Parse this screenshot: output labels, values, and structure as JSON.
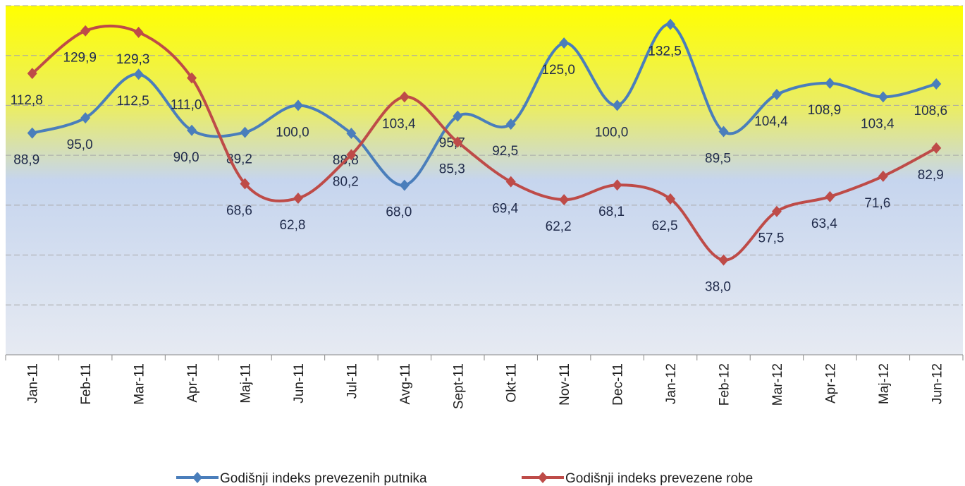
{
  "chart_data": {
    "type": "line",
    "categories": [
      "Jan-11",
      "Feb-11",
      "Mar-11",
      "Apr-11",
      "Maj-11",
      "Jun-11",
      "Jul-11",
      "Avg-11",
      "Sept-11",
      "Okt-11",
      "Nov-11",
      "Dec-11",
      "Jan-12",
      "Feb-12",
      "Mar-12",
      "Apr-12",
      "Maj-12",
      "Jun-12"
    ],
    "series": [
      {
        "name": "Godišnji indeks prevezenih putnika",
        "color": "#4a7ebb",
        "values": [
          88.9,
          95.0,
          112.5,
          90.0,
          89.2,
          100.0,
          88.8,
          68.0,
          95.7,
          92.5,
          125.0,
          100.0,
          132.5,
          89.5,
          104.4,
          108.9,
          103.4,
          108.6
        ],
        "value_labels": [
          "88,9",
          "95,0",
          "112,5",
          "90,0",
          "89,2",
          "100,0",
          "88,8",
          "68,0",
          "95,7",
          "92,5",
          "125,0",
          "100,0",
          "132,5",
          "89,5",
          "104,4",
          "108,9",
          "103,4",
          "108,6"
        ]
      },
      {
        "name": "Godišnji indeks prevezene robe",
        "color": "#be4b48",
        "values": [
          112.8,
          129.9,
          129.3,
          111.0,
          68.6,
          62.8,
          80.2,
          103.4,
          85.3,
          69.4,
          62.2,
          68.1,
          62.5,
          38.0,
          57.5,
          63.4,
          71.6,
          82.9
        ],
        "value_labels": [
          "112,8",
          "129,9",
          "129,3",
          "111,0",
          "68,6",
          "62,8",
          "80,2",
          "103,4",
          "85,3",
          "69,4",
          "62,2",
          "68,1",
          "62,5",
          "38,0",
          "57,5",
          "63,4",
          "71,6",
          "82,9"
        ]
      }
    ],
    "ylim": [
      0,
      140
    ],
    "yticks": [
      0,
      20,
      40,
      60,
      80,
      100,
      120,
      140
    ],
    "grid": true,
    "legend": "bottom"
  }
}
